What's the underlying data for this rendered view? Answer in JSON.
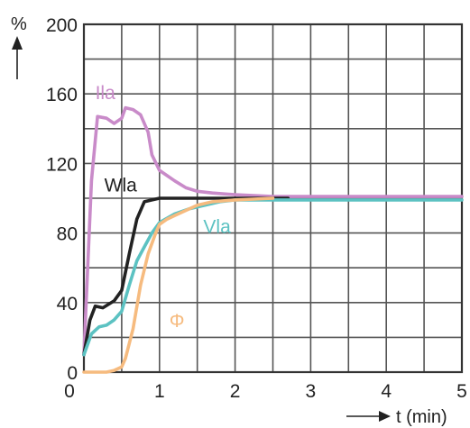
{
  "chart_data": {
    "type": "line",
    "ylabel": "%",
    "xlabel": "t (min)",
    "xlim": [
      0,
      5
    ],
    "ylim": [
      0,
      200
    ],
    "x_ticks": [
      "0",
      "1",
      "2",
      "3",
      "4",
      "5"
    ],
    "y_ticks": [
      "0",
      "40",
      "80",
      "120",
      "160",
      "200"
    ],
    "grid": true,
    "series": [
      {
        "name": "Ila",
        "color": "#c98bc9",
        "label_at": [
          0.15,
          157
        ],
        "points": [
          [
            0,
            10
          ],
          [
            0.05,
            60
          ],
          [
            0.1,
            110
          ],
          [
            0.18,
            147
          ],
          [
            0.3,
            146
          ],
          [
            0.4,
            143
          ],
          [
            0.5,
            146
          ],
          [
            0.55,
            152
          ],
          [
            0.65,
            151
          ],
          [
            0.75,
            148
          ],
          [
            0.85,
            138
          ],
          [
            0.9,
            125
          ],
          [
            1.0,
            116
          ],
          [
            1.1,
            113
          ],
          [
            1.2,
            110
          ],
          [
            1.35,
            106
          ],
          [
            1.5,
            104
          ],
          [
            1.7,
            103
          ],
          [
            2.0,
            102
          ],
          [
            2.5,
            101
          ],
          [
            3.0,
            101
          ],
          [
            4.0,
            101
          ],
          [
            5.0,
            101
          ]
        ]
      },
      {
        "name": "Wla",
        "color": "#222222",
        "label_at": [
          0.27,
          104
        ],
        "points": [
          [
            0,
            10
          ],
          [
            0.08,
            30
          ],
          [
            0.15,
            38
          ],
          [
            0.25,
            37
          ],
          [
            0.4,
            41
          ],
          [
            0.5,
            47
          ],
          [
            0.6,
            68
          ],
          [
            0.7,
            88
          ],
          [
            0.8,
            98
          ],
          [
            0.9,
            99
          ],
          [
            1.0,
            100
          ],
          [
            1.5,
            100
          ],
          [
            2.0,
            100
          ],
          [
            2.7,
            100
          ]
        ]
      },
      {
        "name": "Vla",
        "color": "#5cc2c2",
        "label_at": [
          1.58,
          80
        ],
        "points": [
          [
            0,
            10
          ],
          [
            0.1,
            22
          ],
          [
            0.2,
            26
          ],
          [
            0.3,
            27
          ],
          [
            0.4,
            30
          ],
          [
            0.5,
            35
          ],
          [
            0.6,
            50
          ],
          [
            0.7,
            64
          ],
          [
            0.8,
            72
          ],
          [
            0.9,
            80
          ],
          [
            1.0,
            86
          ],
          [
            1.2,
            91
          ],
          [
            1.4,
            94
          ],
          [
            1.6,
            96
          ],
          [
            1.8,
            98
          ],
          [
            2.0,
            99
          ],
          [
            2.5,
            99
          ],
          [
            3.0,
            99
          ],
          [
            4.0,
            99
          ],
          [
            5.0,
            99
          ]
        ]
      },
      {
        "name": "Φ",
        "color": "#f6bb7f",
        "label_at": [
          1.13,
          26
        ],
        "points": [
          [
            0,
            0
          ],
          [
            0.3,
            0
          ],
          [
            0.4,
            1
          ],
          [
            0.5,
            3
          ],
          [
            0.55,
            8
          ],
          [
            0.65,
            25
          ],
          [
            0.75,
            50
          ],
          [
            0.85,
            68
          ],
          [
            0.95,
            80
          ],
          [
            1.0,
            85
          ],
          [
            1.1,
            88
          ],
          [
            1.2,
            90
          ],
          [
            1.35,
            93
          ],
          [
            1.5,
            96
          ],
          [
            1.7,
            98
          ],
          [
            2.0,
            99
          ],
          [
            2.5,
            100
          ]
        ]
      }
    ]
  }
}
